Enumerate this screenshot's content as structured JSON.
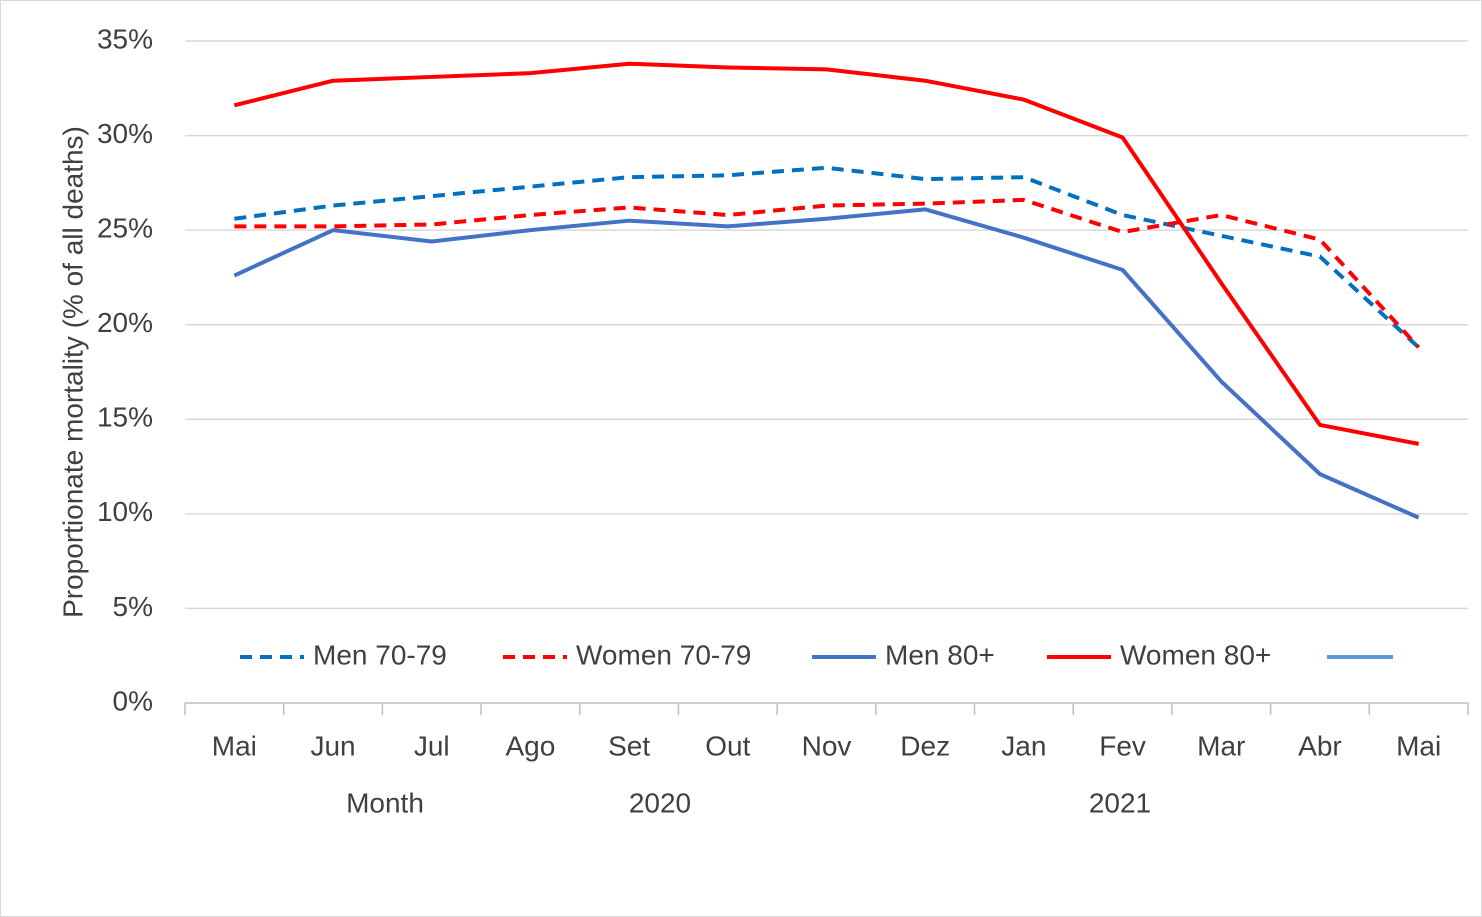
{
  "chart_data": {
    "type": "line",
    "y_label": "Proportionate mortality (% of all deaths)",
    "x_label": "Month",
    "annotations": [
      "2020",
      "2021"
    ],
    "categories": [
      "Mai",
      "Jun",
      "Jul",
      "Ago",
      "Set",
      "Out",
      "Nov",
      "Dez",
      "Jan",
      "Fev",
      "Mar",
      "Abr",
      "Mai"
    ],
    "series": [
      {
        "name": "Men 70-79",
        "color": "#0070c0",
        "dashed": true,
        "values": [
          25.6,
          26.3,
          26.8,
          27.3,
          27.8,
          27.9,
          28.3,
          27.7,
          27.8,
          25.8,
          24.7,
          23.6,
          18.8
        ]
      },
      {
        "name": "Women 70-79",
        "color": "#ff0000",
        "dashed": true,
        "values": [
          25.2,
          25.2,
          25.3,
          25.8,
          26.2,
          25.8,
          26.3,
          26.4,
          26.6,
          24.9,
          25.8,
          24.5,
          18.8
        ]
      },
      {
        "name": "Men 80+",
        "color": "#4472c4",
        "dashed": false,
        "values": [
          22.6,
          25.0,
          24.4,
          25.0,
          25.5,
          25.2,
          25.6,
          26.1,
          24.6,
          22.9,
          17.0,
          12.1,
          9.8
        ]
      },
      {
        "name": "Women 80+",
        "color": "#ff0000",
        "dashed": false,
        "values": [
          31.6,
          32.9,
          33.1,
          33.3,
          33.8,
          33.6,
          33.5,
          32.9,
          31.9,
          29.9,
          22.2,
          14.7,
          13.7
        ]
      }
    ],
    "ylim": [
      0,
      35
    ],
    "yticks": [
      {
        "value": 0,
        "label": "0%"
      },
      {
        "value": 5,
        "label": "5%"
      },
      {
        "value": 10,
        "label": "10%"
      },
      {
        "value": 15,
        "label": "15%"
      },
      {
        "value": 20,
        "label": "20%"
      },
      {
        "value": 25,
        "label": "25%"
      },
      {
        "value": 30,
        "label": "30%"
      },
      {
        "value": 35,
        "label": "35%"
      }
    ],
    "grid": true
  }
}
